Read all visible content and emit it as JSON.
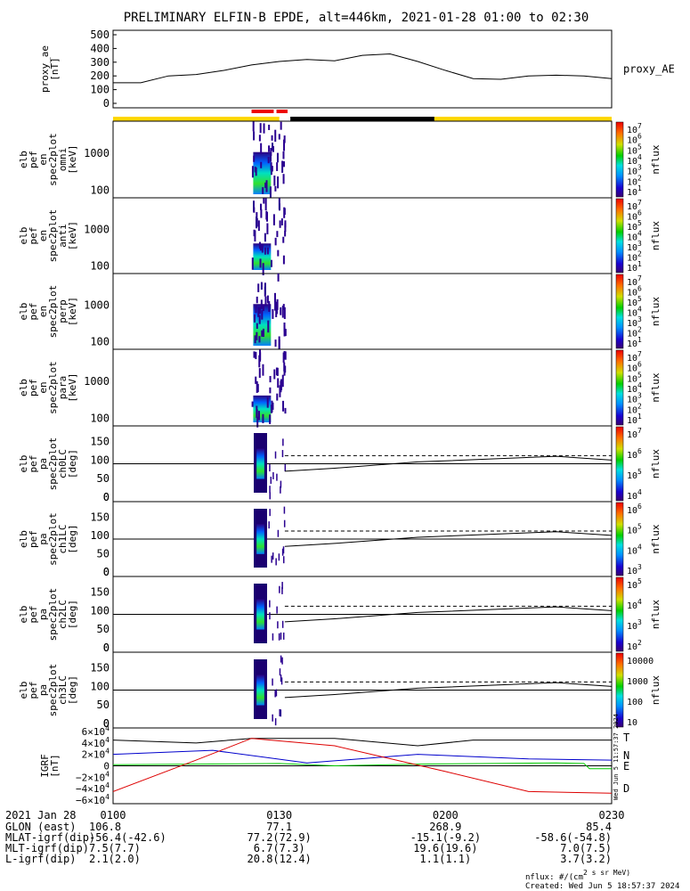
{
  "title": "PRELIMINARY ELFIN-B EPDE, alt=446km, 2021-01-28 01:00 to 02:30",
  "panels": [
    {
      "id": "ae",
      "ylabel": [
        "proxy_ae",
        "[nT]"
      ],
      "right_label": "proxy_AE",
      "yticks": [
        "500",
        "400",
        "300",
        "200",
        "100",
        "0"
      ]
    },
    {
      "id": "omni",
      "ylabel": [
        "elb",
        "pef",
        "en",
        "spec2plot",
        "omni",
        "[keV]"
      ],
      "yticks": [
        "1000",
        "100"
      ],
      "cbar_ticks": [
        "10^7",
        "10^6",
        "10^5",
        "10^4",
        "10^3",
        "10^2",
        "10^1"
      ],
      "cbar_label": "nflux"
    },
    {
      "id": "anti",
      "ylabel": [
        "elb",
        "pef",
        "en",
        "spec2plot",
        "anti",
        "[keV]"
      ],
      "yticks": [
        "1000",
        "100"
      ],
      "cbar_ticks": [
        "10^7",
        "10^6",
        "10^5",
        "10^4",
        "10^3",
        "10^2",
        "10^1"
      ],
      "cbar_label": "nflux"
    },
    {
      "id": "perp",
      "ylabel": [
        "elb",
        "pef",
        "en",
        "spec2plot",
        "perp",
        "[keV]"
      ],
      "yticks": [
        "1000",
        "100"
      ],
      "cbar_ticks": [
        "10^7",
        "10^6",
        "10^5",
        "10^4",
        "10^3",
        "10^2",
        "10^1"
      ],
      "cbar_label": "nflux"
    },
    {
      "id": "para",
      "ylabel": [
        "elb",
        "pef",
        "en",
        "spec2plot",
        "para",
        "[keV]"
      ],
      "yticks": [
        "1000",
        "100"
      ],
      "cbar_ticks": [
        "10^7",
        "10^6",
        "10^5",
        "10^4",
        "10^3",
        "10^2",
        "10^1"
      ],
      "cbar_label": "nflux"
    },
    {
      "id": "ch0",
      "ylabel": [
        "elb",
        "pef",
        "pa",
        "spec2plot",
        "ch0LC",
        "[deg]"
      ],
      "yticks": [
        "150",
        "100",
        "50",
        "0"
      ],
      "cbar_ticks": [
        "10^7",
        "10^6",
        "10^5",
        "10^4"
      ],
      "cbar_label": "nflux"
    },
    {
      "id": "ch1",
      "ylabel": [
        "elb",
        "pef",
        "pa",
        "spec2plot",
        "ch1LC",
        "[deg]"
      ],
      "yticks": [
        "150",
        "100",
        "50",
        "0"
      ],
      "cbar_ticks": [
        "10^6",
        "10^5",
        "10^4",
        "10^3"
      ],
      "cbar_label": "nflux"
    },
    {
      "id": "ch2",
      "ylabel": [
        "elb",
        "pef",
        "pa",
        "spec2plot",
        "ch2LC",
        "[deg]"
      ],
      "yticks": [
        "150",
        "100",
        "50",
        "0"
      ],
      "cbar_ticks": [
        "10^5",
        "10^4",
        "10^3",
        "10^2"
      ],
      "cbar_label": "nflux"
    },
    {
      "id": "ch3",
      "ylabel": [
        "elb",
        "pef",
        "pa",
        "spec2plot",
        "ch3LC",
        "[deg]"
      ],
      "yticks": [
        "150",
        "100",
        "50",
        "0"
      ],
      "cbar_ticks": [
        "10000",
        "1000",
        "100",
        "10"
      ],
      "cbar_label": "nflux"
    },
    {
      "id": "igrf",
      "ylabel": [
        "IGRF",
        "[nT]"
      ],
      "yticks": [
        "6×10^4",
        "4×10^4",
        "2×10^4",
        "0",
        "−2×10^4",
        "−4×10^4",
        "−6×10^4"
      ],
      "legend": [
        "T",
        "N",
        "E",
        "D"
      ]
    }
  ],
  "colors": {
    "T": "#000000",
    "N": "#0000cc",
    "E": "#00cc00",
    "D": "#dd0000",
    "sunlit": "#ffd700",
    "shadow": "#000000",
    "science": "#ee0000"
  },
  "footer": {
    "date_label": "2021 Jan 28",
    "times": [
      "0100",
      "0130",
      "0200",
      "0230"
    ],
    "rows": [
      {
        "label": "GLON (east)",
        "values": [
          "106.8",
          "77.1",
          "268.9",
          "85.4"
        ]
      },
      {
        "label": "MLAT-igrf(dip)",
        "values": [
          "-56.4(-42.6)",
          "77.2(72.9)",
          "-15.1(-9.2)",
          "-58.6(-54.8)"
        ]
      },
      {
        "label": "MLT-igrf(dip)",
        "values": [
          "7.5(7.7)",
          "6.7(7.3)",
          "19.6(19.6)",
          "7.0(7.5)"
        ]
      },
      {
        "label": "L-igrf(dip)",
        "values": [
          "2.1(2.0)",
          "20.8(12.4)",
          "1.1(1.1)",
          "3.7(3.2)"
        ]
      }
    ],
    "units": "nflux: #/(cm^2 s sr MeV)",
    "created": "Created: Wed Jun  5 18:57:37 2024",
    "stamp": "Wed Jun  5 11:57:37 2024"
  },
  "chart_data": {
    "type": "line",
    "x_range_minutes": [
      0,
      90
    ],
    "proxy_ae": {
      "x": [
        0,
        5,
        10,
        15,
        20,
        25,
        30,
        35,
        40,
        45,
        50,
        55,
        60,
        65,
        70,
        75,
        80,
        85,
        90
      ],
      "y": [
        150,
        150,
        200,
        210,
        240,
        280,
        305,
        320,
        310,
        350,
        360,
        305,
        240,
        180,
        175,
        200,
        205,
        200,
        180
      ],
      "ylim": [
        0,
        500
      ]
    },
    "spectrogram_time_range": [
      25,
      31
    ],
    "pitch_angle_lines": {
      "solid": [
        [
          31,
          70
        ],
        [
          40,
          78
        ],
        [
          55,
          95
        ],
        [
          80,
          110
        ],
        [
          90,
          100
        ]
      ],
      "dashed": [
        [
          31,
          112
        ],
        [
          90,
          112
        ]
      ]
    },
    "igrf": {
      "ylim": [
        -60000,
        60000
      ],
      "series": [
        {
          "name": "T",
          "values": [
            [
              0,
              45000
            ],
            [
              15,
              40000
            ],
            [
              25,
              48000
            ],
            [
              40,
              48000
            ],
            [
              55,
              35000
            ],
            [
              65,
              45000
            ],
            [
              90,
              45000
            ]
          ]
        },
        {
          "name": "N",
          "values": [
            [
              0,
              20000
            ],
            [
              18,
              27000
            ],
            [
              35,
              5000
            ],
            [
              55,
              20000
            ],
            [
              75,
              12000
            ],
            [
              90,
              10000
            ]
          ]
        },
        {
          "name": "E",
          "values": [
            [
              0,
              2000
            ],
            [
              30,
              4000
            ],
            [
              40,
              0
            ],
            [
              55,
              3000
            ],
            [
              80,
              5000
            ],
            [
              85,
              4000
            ],
            [
              86,
              -5000
            ],
            [
              90,
              -5000
            ]
          ]
        },
        {
          "name": "D",
          "values": [
            [
              0,
              -45000
            ],
            [
              15,
              10000
            ],
            [
              25,
              48000
            ],
            [
              40,
              35000
            ],
            [
              60,
              -10000
            ],
            [
              75,
              -45000
            ],
            [
              90,
              -48000
            ]
          ]
        }
      ]
    }
  }
}
